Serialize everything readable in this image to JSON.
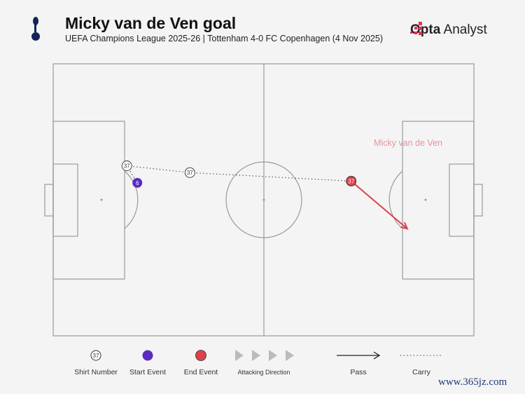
{
  "header": {
    "title": "Micky van de Ven goal",
    "subtitle": "UEFA Champions League 2025-26 | Tottenham 4-0 FC Copenhagen (4 Nov 2025)",
    "brand_bold": "Opta",
    "brand_light": "Analyst",
    "team_crest": "tottenham-cockerel-logo"
  },
  "chart_data": {
    "type": "pitch-event-map",
    "attacking_direction": "left-to-right",
    "player_label": "Micky van de Ven",
    "events": [
      {
        "type": "shirt",
        "number": "37",
        "x": 21,
        "y": 30
      },
      {
        "type": "start",
        "number": "6",
        "x": 24,
        "y": 35
      },
      {
        "type": "shirt",
        "number": "37",
        "x": 39,
        "y": 32
      },
      {
        "type": "end",
        "number": "37",
        "x": 85,
        "y": 34.5
      }
    ],
    "carries": [
      [
        0,
        1
      ],
      [
        0,
        2
      ],
      [
        2,
        3
      ]
    ],
    "pass": {
      "from": [
        85,
        34.5
      ],
      "to": [
        101,
        48.5
      ]
    },
    "colors": {
      "start": "#5b2bc0",
      "end": "#e0404a",
      "pass": "#d9434c",
      "label": "#e8939a",
      "pitch_line": "#9a9a9a"
    }
  },
  "legend": {
    "shirt_number": "Shirt Number",
    "shirt_example": "37",
    "start_event": "Start Event",
    "end_event": "End Event",
    "attacking_direction": "Attacking Direction",
    "pass": "Pass",
    "carry": "Carry"
  },
  "watermark": "www.365jz.com"
}
